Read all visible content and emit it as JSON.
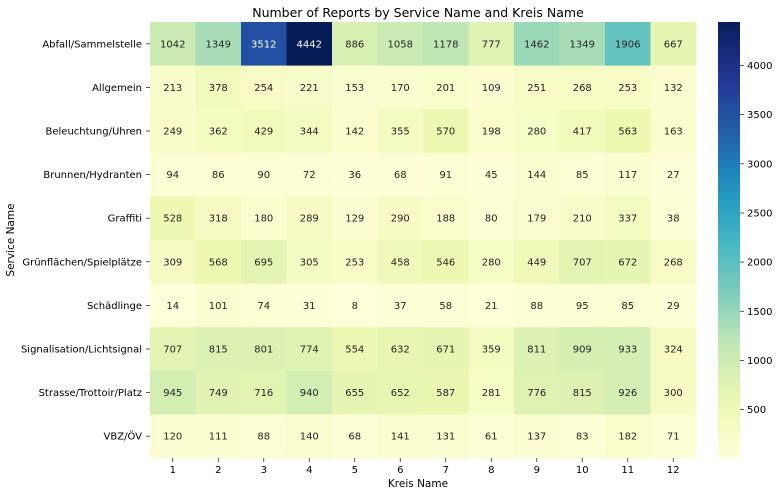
{
  "chart_data": {
    "type": "heatmap",
    "title": "Number of Reports by Service Name and Kreis Name",
    "xlabel": "Kreis Name",
    "ylabel": "Service Name",
    "x": [
      "1",
      "2",
      "3",
      "4",
      "5",
      "6",
      "7",
      "8",
      "9",
      "10",
      "11",
      "12"
    ],
    "y": [
      "Abfall/Sammelstelle",
      "Allgemein",
      "Beleuchtung/Uhren",
      "Brunnen/Hydranten",
      "Graffiti",
      "Grünflächen/Spielplätze",
      "Schädlinge",
      "Signalisation/Lichtsignal",
      "Strasse/Trottoir/Platz",
      "VBZ/ÖV"
    ],
    "values": [
      [
        1042,
        1349,
        3512,
        4442,
        886,
        1058,
        1178,
        777,
        1462,
        1349,
        1906,
        667
      ],
      [
        213,
        378,
        254,
        221,
        153,
        170,
        201,
        109,
        251,
        268,
        253,
        132
      ],
      [
        249,
        362,
        429,
        344,
        142,
        355,
        570,
        198,
        280,
        417,
        563,
        163
      ],
      [
        94,
        86,
        90,
        72,
        36,
        68,
        91,
        45,
        144,
        85,
        117,
        27
      ],
      [
        528,
        318,
        180,
        289,
        129,
        290,
        188,
        80,
        179,
        210,
        337,
        38
      ],
      [
        309,
        568,
        695,
        305,
        253,
        458,
        546,
        280,
        449,
        707,
        672,
        268
      ],
      [
        14,
        101,
        74,
        31,
        8,
        37,
        58,
        21,
        88,
        95,
        85,
        29
      ],
      [
        707,
        815,
        801,
        774,
        554,
        632,
        671,
        359,
        811,
        909,
        933,
        324
      ],
      [
        945,
        749,
        716,
        940,
        655,
        652,
        587,
        281,
        776,
        815,
        926,
        300
      ],
      [
        120,
        111,
        88,
        140,
        68,
        141,
        131,
        61,
        137,
        83,
        182,
        71
      ]
    ],
    "colorscale": "YlGnBu",
    "vmin": 8,
    "vmax": 4442,
    "colorbar_ticks": [
      500,
      1000,
      1500,
      2000,
      2500,
      3000,
      3500,
      4000
    ],
    "annotations": true,
    "grid": false,
    "colorbar_position": "right"
  }
}
